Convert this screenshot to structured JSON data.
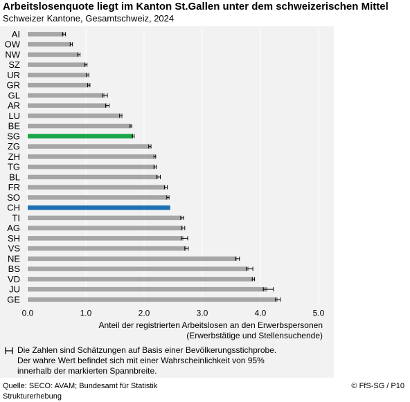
{
  "title": "Arbeitslosenquote liegt im Kanton St.Gallen unter dem schweizerischen Mittel",
  "subtitle": "Schweizer Kantone, Gesamtschweiz, 2024",
  "xlabel_line1": "Anteil der registrierten Arbeitslosen an den Erwerbspersonen",
  "xlabel_line2": "(Erwerbstätige und Stellensuchende)",
  "note_line1": "Die Zahlen sind Schätzungen auf Basis einer Bevölkerungsstichprobe.",
  "note_line2": "Der wahre Wert befindet sich mit einer Wahrscheinlichkeit von 95%",
  "note_line3": "innerhalb der markierten Spannbreite.",
  "source": "Quelle: SECO: AVAM; Bundesamt für Statistik Strukturerhebung",
  "copyright": "© FfS-SG / P10",
  "colors": {
    "bar": "#a6a6a6",
    "highlight_sg": "#1aa64a",
    "highlight_ch": "#1f6fb4",
    "grid": "#ffffff",
    "errorbar": "#000000"
  },
  "chart_data": {
    "type": "bar",
    "orientation": "horizontal",
    "xlim": [
      0,
      5
    ],
    "xticks": [
      "0.0",
      "1.0",
      "2.0",
      "3.0",
      "4.0",
      "5.0"
    ],
    "grid": true,
    "highlight": {
      "SG": "highlight_sg",
      "CH": "highlight_ch"
    },
    "categories": [
      "AI",
      "OW",
      "NW",
      "SZ",
      "UR",
      "GR",
      "GL",
      "AR",
      "LU",
      "BE",
      "SG",
      "ZG",
      "ZH",
      "TG",
      "BL",
      "FR",
      "SO",
      "CH",
      "TI",
      "AG",
      "SH",
      "VS",
      "NE",
      "BS",
      "VD",
      "JU",
      "GE"
    ],
    "values": [
      0.63,
      0.75,
      0.88,
      1.0,
      1.03,
      1.05,
      1.33,
      1.37,
      1.6,
      1.77,
      1.81,
      2.1,
      2.18,
      2.19,
      2.25,
      2.37,
      2.41,
      2.45,
      2.65,
      2.67,
      2.68,
      2.73,
      3.6,
      3.8,
      3.88,
      4.12,
      4.3
    ],
    "ci_low": [
      0.6,
      0.73,
      0.86,
      0.98,
      1.01,
      1.03,
      1.29,
      1.34,
      1.58,
      1.76,
      1.8,
      2.08,
      2.17,
      2.17,
      2.22,
      2.35,
      2.39,
      null,
      2.63,
      2.65,
      2.64,
      2.7,
      3.57,
      3.76,
      3.86,
      4.05,
      4.26
    ],
    "ci_high": [
      0.65,
      0.77,
      0.9,
      1.02,
      1.05,
      1.07,
      1.37,
      1.4,
      1.62,
      1.79,
      1.83,
      2.12,
      2.2,
      2.21,
      2.28,
      2.4,
      2.43,
      null,
      2.68,
      2.7,
      2.75,
      2.76,
      3.64,
      3.87,
      3.9,
      4.22,
      4.34
    ]
  }
}
